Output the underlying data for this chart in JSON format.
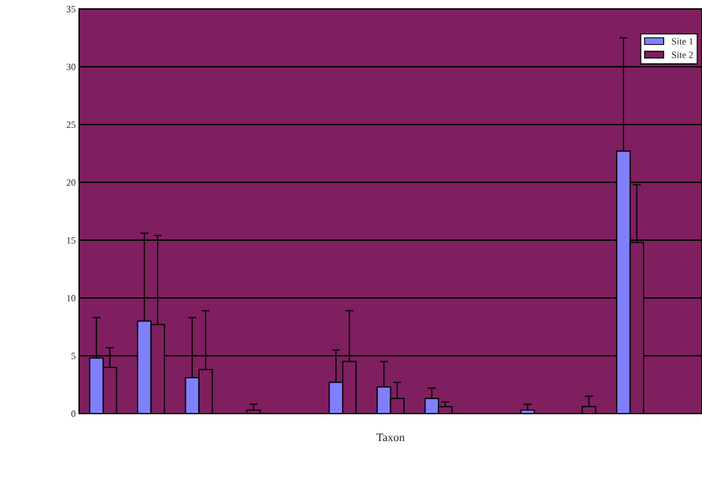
{
  "chart_data": {
    "type": "bar",
    "xlabel": "Taxon",
    "categories": [
      null,
      null,
      null,
      null,
      null,
      null,
      null,
      null,
      null,
      null,
      null,
      null,
      null
    ],
    "series": [
      {
        "name": "Site 1",
        "color": "#8080ff",
        "values": [
          4.8,
          8.0,
          3.1,
          0,
          0,
          2.7,
          2.3,
          1.3,
          0,
          0.3,
          0,
          22.7,
          0
        ],
        "errors": [
          [
            4.8,
            8.3
          ],
          [
            8.0,
            15.6
          ],
          [
            3.1,
            8.3
          ],
          null,
          null,
          [
            2.7,
            5.5
          ],
          [
            2.3,
            4.5
          ],
          [
            1.3,
            2.2
          ],
          null,
          [
            0.3,
            0.8
          ],
          null,
          [
            22.7,
            32.5
          ],
          null
        ]
      },
      {
        "name": "Site 2",
        "color": "#7f1f5f",
        "values": [
          4.0,
          7.7,
          3.8,
          0.3,
          0,
          4.5,
          1.3,
          0.6,
          0,
          0,
          0.6,
          14.8,
          0
        ],
        "errors": [
          [
            4.0,
            5.7
          ],
          [
            7.7,
            15.4
          ],
          [
            3.8,
            8.9
          ],
          [
            0.3,
            0.8
          ],
          null,
          [
            4.5,
            8.9
          ],
          [
            1.3,
            2.7
          ],
          [
            0.6,
            1.0
          ],
          null,
          null,
          [
            0.6,
            1.5
          ],
          [
            14.8,
            19.8
          ],
          null
        ]
      }
    ],
    "ylim": [
      0,
      35
    ],
    "yticks": [
      0,
      5,
      10,
      15,
      20,
      25,
      30,
      35
    ],
    "grid": "y",
    "legend": "top right"
  }
}
